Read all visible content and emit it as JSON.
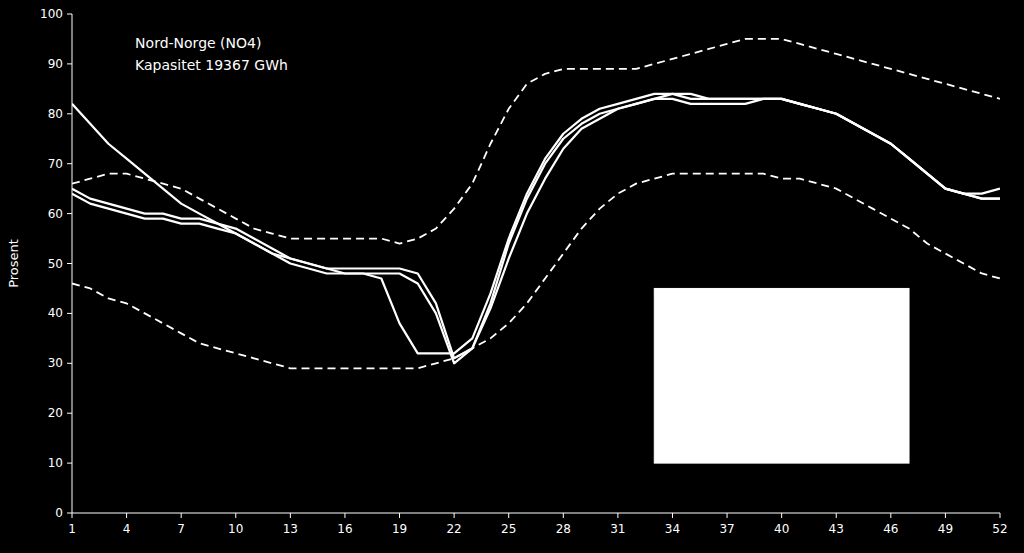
{
  "chart_data": {
    "type": "line",
    "title": "Nord-Norge (NO4)",
    "subtitle": "Kapasitet 19367 GWh",
    "y_label": "Prosent",
    "x": [
      1,
      2,
      3,
      4,
      5,
      6,
      7,
      8,
      9,
      10,
      11,
      12,
      13,
      14,
      15,
      16,
      17,
      18,
      19,
      20,
      21,
      22,
      23,
      24,
      25,
      26,
      27,
      28,
      29,
      30,
      31,
      32,
      33,
      34,
      35,
      36,
      37,
      38,
      39,
      40,
      41,
      42,
      43,
      44,
      45,
      46,
      47,
      48,
      49,
      50,
      51,
      52
    ],
    "series": [
      {
        "color": "#ffffff",
        "line_style": "dashed",
        "values": [
          66,
          67,
          68,
          68,
          67,
          66,
          65,
          63,
          61,
          59,
          57,
          56,
          55,
          55,
          55,
          55,
          55,
          55,
          54,
          55,
          57,
          61,
          66,
          74,
          81,
          86,
          88,
          89,
          89,
          89,
          89,
          89,
          90,
          91,
          92,
          93,
          94,
          95,
          95,
          95,
          94,
          93,
          92,
          91,
          90,
          89,
          88,
          87,
          86,
          85,
          84,
          83
        ]
      },
      {
        "color": "#ffffff",
        "line_style": "dashed",
        "values": [
          46,
          45,
          43,
          42,
          40,
          38,
          36,
          34,
          33,
          32,
          31,
          30,
          29,
          29,
          29,
          29,
          29,
          29,
          29,
          29,
          30,
          31,
          33,
          35,
          38,
          42,
          47,
          52,
          57,
          61,
          64,
          66,
          67,
          68,
          68,
          68,
          68,
          68,
          68,
          67,
          67,
          66,
          65,
          63,
          61,
          59,
          57,
          54,
          52,
          50,
          48,
          47
        ]
      },
      {
        "color": "#ffffff",
        "line_style": "solid",
        "values": [
          82,
          78,
          74,
          71,
          68,
          65,
          62,
          60,
          58,
          56,
          54,
          52,
          51,
          50,
          49,
          49,
          49,
          49,
          49,
          48,
          42,
          31,
          33,
          41,
          51,
          60,
          67,
          73,
          77,
          79,
          81,
          82,
          83,
          84,
          84,
          83,
          83,
          83,
          83,
          83,
          82,
          81,
          80,
          78,
          76,
          74,
          71,
          68,
          65,
          64,
          64,
          65
        ]
      },
      {
        "color": "#ffffff",
        "line_style": "solid",
        "values": [
          65,
          63,
          62,
          61,
          60,
          60,
          59,
          59,
          58,
          57,
          55,
          53,
          51,
          50,
          49,
          48,
          48,
          48,
          48,
          46,
          40,
          30,
          33,
          42,
          54,
          63,
          70,
          75,
          78,
          80,
          81,
          82,
          83,
          83,
          82,
          82,
          82,
          82,
          83,
          83,
          82,
          81,
          80,
          78,
          76,
          74,
          71,
          68,
          65,
          64,
          63,
          63
        ]
      },
      {
        "color": "#ffffff",
        "line_style": "solid",
        "values": [
          64,
          62,
          61,
          60,
          59,
          59,
          58,
          58,
          57,
          56,
          54,
          52,
          50,
          49,
          48,
          48,
          48,
          47,
          38,
          32,
          32,
          32,
          35,
          44,
          55,
          64,
          71,
          76,
          79,
          81,
          82,
          83,
          84,
          84,
          83,
          83,
          83,
          83,
          83,
          83,
          82,
          81,
          80,
          78,
          76,
          74,
          71,
          68,
          65,
          64,
          63,
          63
        ]
      }
    ],
    "box": {
      "x": 33,
      "y": 10,
      "width": 14,
      "height": 35,
      "color": "#ffffff"
    },
    "xlim": [
      1,
      52
    ],
    "ylim": [
      0,
      100
    ],
    "xticks": [
      1,
      4,
      7,
      10,
      13,
      16,
      19,
      22,
      25,
      28,
      31,
      34,
      37,
      40,
      43,
      46,
      49,
      52
    ],
    "yticks": [
      0,
      10,
      20,
      30,
      40,
      50,
      60,
      70,
      80,
      90,
      100
    ],
    "grid": false
  }
}
